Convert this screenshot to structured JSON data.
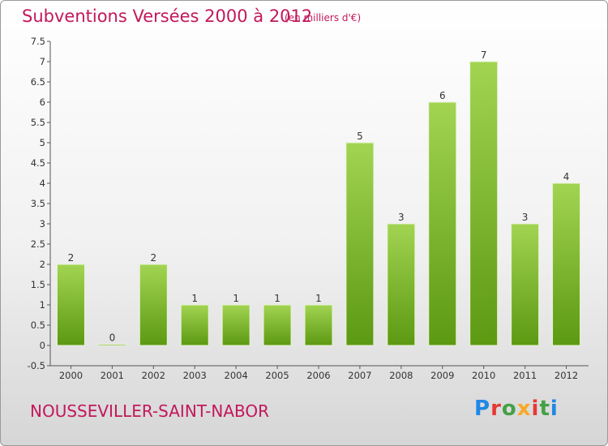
{
  "title": "Subventions Versées 2000 à 2012",
  "subtitle": "(en milliers d'€)",
  "commune": "NOUSSEVILLER-SAINT-NABOR",
  "logo": [
    "P",
    "r",
    "o",
    "x",
    "i",
    "t",
    "i"
  ],
  "colors": {
    "accent": "#c2185b",
    "bar_top": "#9ed24f",
    "bar_bottom": "#5e9a12"
  },
  "chart_data": {
    "type": "bar",
    "title": "Subventions Versées 2000 à 2012",
    "subtitle": "(en milliers d'€)",
    "categories": [
      "2000",
      "2001",
      "2002",
      "2003",
      "2004",
      "2005",
      "2006",
      "2007",
      "2008",
      "2009",
      "2010",
      "2011",
      "2012"
    ],
    "values": [
      2,
      0,
      2,
      1,
      1,
      1,
      1,
      5,
      3,
      6,
      7,
      3,
      4
    ],
    "value_labels": [
      "2",
      "0",
      "2",
      "1",
      "1",
      "1",
      "1",
      "5",
      "3",
      "6",
      "7",
      "3",
      "4"
    ],
    "y_ticks": [
      "-0.5",
      "0",
      "0.5",
      "1",
      "1.5",
      "2",
      "2.5",
      "3",
      "3.5",
      "4",
      "4.5",
      "5",
      "5.5",
      "6",
      "6.5",
      "7",
      "7.5"
    ],
    "y_tick_values": [
      -0.5,
      0,
      0.5,
      1,
      1.5,
      2,
      2.5,
      3,
      3.5,
      4,
      4.5,
      5,
      5.5,
      6,
      6.5,
      7,
      7.5
    ],
    "ylim": [
      -0.5,
      7.5
    ],
    "grid": false
  }
}
